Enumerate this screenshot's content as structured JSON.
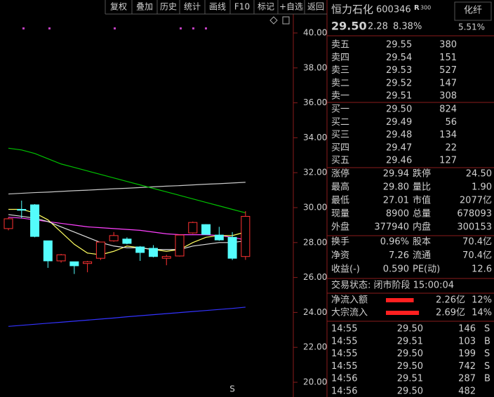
{
  "toolbar": {
    "buttons": [
      "复权",
      "叠加",
      "历史",
      "统计",
      "画线",
      "F10",
      "标记",
      "+自选",
      "返回"
    ]
  },
  "chart": {
    "yticks": [
      {
        "value": 40,
        "label": "40.00"
      },
      {
        "value": 38,
        "label": "38.00"
      },
      {
        "value": 36,
        "label": "36.00"
      },
      {
        "value": 34,
        "label": "34.00"
      },
      {
        "value": 32,
        "label": "32.00"
      },
      {
        "value": 30,
        "label": "30.00"
      },
      {
        "value": 28,
        "label": "28.00"
      },
      {
        "value": 26,
        "label": "26.00"
      },
      {
        "value": 24,
        "label": "24.00"
      },
      {
        "value": 22,
        "label": "22.00"
      },
      {
        "value": 20,
        "label": "20.00"
      }
    ],
    "ylim": [
      19.5,
      40.5
    ],
    "candles": [
      {
        "open": 28.8,
        "high": 29.45,
        "low": 28.7,
        "close": 29.36
      },
      {
        "open": 29.9,
        "high": 30.4,
        "low": 29.4,
        "close": 29.85
      },
      {
        "open": 30.16,
        "high": 30.2,
        "low": 28.3,
        "close": 28.35
      },
      {
        "open": 28.1,
        "high": 28.1,
        "low": 26.55,
        "close": 26.95
      },
      {
        "open": 26.95,
        "high": 27.35,
        "low": 26.85,
        "close": 27.3
      },
      {
        "open": 26.9,
        "high": 26.9,
        "low": 26.2,
        "close": 26.67
      },
      {
        "open": 26.8,
        "high": 26.95,
        "low": 26.3,
        "close": 26.9
      },
      {
        "open": 27.1,
        "high": 28.05,
        "low": 27.0,
        "close": 28.03
      },
      {
        "open": 28.1,
        "high": 28.6,
        "low": 28.05,
        "close": 28.4
      },
      {
        "open": 28.2,
        "high": 28.3,
        "low": 27.9,
        "close": 27.95
      },
      {
        "open": 27.75,
        "high": 27.8,
        "low": 26.95,
        "close": 27.43
      },
      {
        "open": 27.67,
        "high": 27.85,
        "low": 27.15,
        "close": 27.2
      },
      {
        "open": 27.1,
        "high": 27.3,
        "low": 26.7,
        "close": 27.2
      },
      {
        "open": 27.23,
        "high": 28.45,
        "low": 27.2,
        "close": 28.43
      },
      {
        "open": 28.55,
        "high": 29.2,
        "low": 28.5,
        "close": 29.15
      },
      {
        "open": 29.03,
        "high": 29.05,
        "low": 28.45,
        "close": 28.47
      },
      {
        "open": 28.43,
        "high": 28.9,
        "low": 28.1,
        "close": 28.15
      },
      {
        "open": 28.3,
        "high": 28.6,
        "low": 27.0,
        "close": 27.1
      },
      {
        "open": 27.2,
        "high": 29.8,
        "low": 27.01,
        "close": 29.5
      }
    ],
    "up_color": "#ff3232",
    "down_color": "#54fcfc",
    "lines": [
      {
        "color": "#c8c8c8",
        "values": [
          30.78,
          30.82,
          30.86,
          30.89,
          30.93,
          30.97,
          31.0,
          31.04,
          31.08,
          31.11,
          31.15,
          31.19,
          31.23,
          31.26,
          31.3,
          31.34,
          31.37,
          31.41,
          31.45
        ]
      },
      {
        "color": "#00c000",
        "values": [
          33.4,
          33.3,
          33.1,
          32.8,
          32.5,
          32.3,
          32.1,
          31.9,
          31.7,
          31.5,
          31.3,
          31.1,
          30.9,
          30.7,
          30.5,
          30.3,
          30.1,
          29.9,
          29.7
        ]
      },
      {
        "color": "#3333ff",
        "values": [
          23.2,
          23.26,
          23.32,
          23.38,
          23.44,
          23.5,
          23.56,
          23.62,
          23.68,
          23.75,
          23.81,
          23.87,
          23.93,
          23.99,
          24.05,
          24.11,
          24.17,
          24.23,
          24.3
        ]
      },
      {
        "color": "#ff40ff",
        "values": [
          29.45,
          29.4,
          29.3,
          29.2,
          29.1,
          29.0,
          28.9,
          28.85,
          28.8,
          28.75,
          28.7,
          28.6,
          28.5,
          28.45,
          28.45,
          28.45,
          28.4,
          28.3,
          28.15
        ]
      },
      {
        "color": "#ffff60",
        "values": [
          29.9,
          29.9,
          29.7,
          29.3,
          28.6,
          27.9,
          27.4,
          27.3,
          27.5,
          27.8,
          27.7,
          27.6,
          27.5,
          27.6,
          28.0,
          28.3,
          28.4,
          28.4,
          28.6
        ]
      },
      {
        "color": "#e0e0e0",
        "values": [
          29.6,
          29.5,
          29.4,
          29.2,
          28.9,
          28.6,
          28.3,
          28.0,
          27.8,
          27.7,
          27.7,
          27.6,
          27.6,
          27.6,
          27.8,
          27.9,
          28.0,
          28.0,
          28.1
        ]
      }
    ],
    "marker": "S"
  },
  "quote": {
    "name": "恒力石化",
    "code": "600346",
    "tag": "R",
    "tag_sub": "300",
    "sector": "化纤",
    "price": "29.50",
    "change": "2.28",
    "pct": "8.38%",
    "sector_pct": "5.51%"
  },
  "orderbook": {
    "sell": [
      {
        "label": "卖五",
        "price": "29.55",
        "volume": "380"
      },
      {
        "label": "卖四",
        "price": "29.54",
        "volume": "151"
      },
      {
        "label": "卖三",
        "price": "29.53",
        "volume": "527"
      },
      {
        "label": "卖二",
        "price": "29.52",
        "volume": "147"
      },
      {
        "label": "卖一",
        "price": "29.51",
        "volume": "308"
      }
    ],
    "buy": [
      {
        "label": "买一",
        "price": "29.50",
        "volume": "824"
      },
      {
        "label": "买二",
        "price": "29.49",
        "volume": "56"
      },
      {
        "label": "买三",
        "price": "29.48",
        "volume": "134"
      },
      {
        "label": "买四",
        "price": "29.47",
        "volume": "22"
      },
      {
        "label": "买五",
        "price": "29.46",
        "volume": "127"
      }
    ]
  },
  "stats": [
    [
      {
        "label": "涨停",
        "value": "29.94",
        "color": "r"
      },
      {
        "label": "跌停",
        "value": "24.50",
        "color": "g"
      }
    ],
    [
      {
        "label": "最高",
        "value": "29.80",
        "color": "r"
      },
      {
        "label": "量比",
        "value": "1.90",
        "color": "r"
      }
    ],
    [
      {
        "label": "最低",
        "value": "27.01",
        "color": "g"
      },
      {
        "label": "市值",
        "value": "2077亿",
        "color": "w"
      }
    ],
    [
      {
        "label": "现量",
        "value": "8900",
        "color": "m"
      },
      {
        "label": "总量",
        "value": "678093",
        "color": "w"
      }
    ],
    [
      {
        "label": "外盘",
        "value": "377940",
        "color": "r"
      },
      {
        "label": "内盘",
        "value": "300153",
        "color": "g"
      }
    ],
    [
      {
        "label": "换手",
        "value": "0.96%",
        "color": "w"
      },
      {
        "label": "股本",
        "value": "70.4亿",
        "color": "w"
      }
    ],
    [
      {
        "label": "净资",
        "value": "7.26",
        "color": "w"
      },
      {
        "label": "流通",
        "value": "70.4亿",
        "color": "w"
      }
    ],
    [
      {
        "label": "收益(-)",
        "value": "0.590",
        "color": "w"
      },
      {
        "label": "PE(动)",
        "value": "12.6",
        "color": "w"
      }
    ]
  ],
  "status": "交易状态: 闭市阶段 15:00:04",
  "flows": [
    {
      "label": "净流入额",
      "value": "2.26亿",
      "pct": "12%"
    },
    {
      "label": "大宗流入",
      "value": "2.69亿",
      "pct": "14%"
    }
  ],
  "ticks": [
    {
      "time": "14:55",
      "price": "29.50",
      "volume": "146",
      "volume_color": "y",
      "side": "S",
      "side_color": "g"
    },
    {
      "time": "14:55",
      "price": "29.51",
      "volume": "103",
      "volume_color": "y",
      "side": "B",
      "side_color": "r"
    },
    {
      "time": "14:55",
      "price": "29.50",
      "volume": "199",
      "volume_color": "y",
      "side": "S",
      "side_color": "g"
    },
    {
      "time": "14:55",
      "price": "29.50",
      "volume": "742",
      "volume_color": "m",
      "side": "S",
      "side_color": "g"
    },
    {
      "time": "14:56",
      "price": "29.51",
      "volume": "287",
      "volume_color": "y",
      "side": "B",
      "side_color": "r"
    },
    {
      "time": "14:56",
      "price": "29.50",
      "volume": "482",
      "volume_color": "y"
    }
  ]
}
